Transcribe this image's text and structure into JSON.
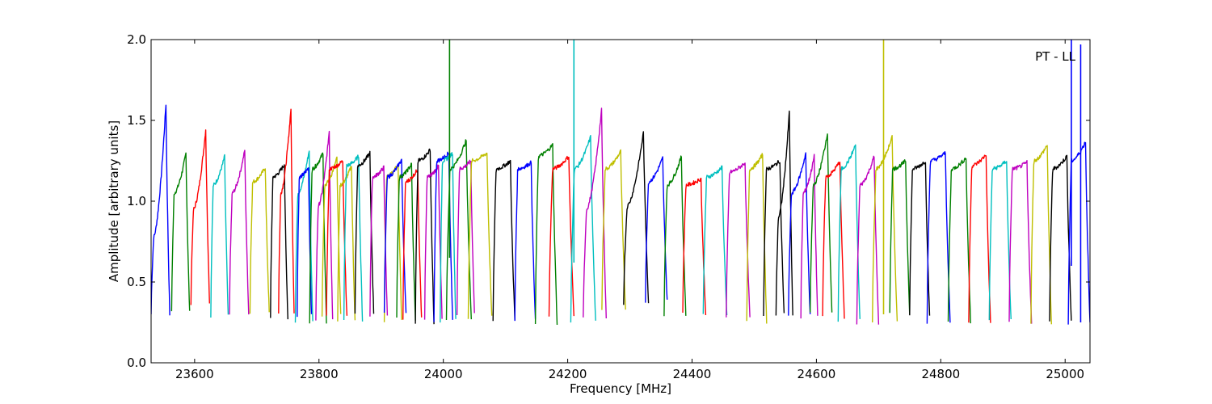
{
  "chart_data": {
    "type": "line",
    "title": "",
    "annotation": "PT - LL",
    "xlabel": "Frequency [MHz]",
    "ylabel": "Amplitude [arbitrary units]",
    "xlim": [
      23530,
      25040
    ],
    "ylim": [
      0.0,
      2.0
    ],
    "xticks": [
      23600,
      23800,
      24000,
      24200,
      24400,
      24600,
      24800,
      25000
    ],
    "yticks": [
      0.0,
      0.5,
      1.0,
      1.5,
      2.0
    ],
    "xtick_labels": [
      "23600",
      "23800",
      "24000",
      "24200",
      "24400",
      "24600",
      "24800",
      "25000"
    ],
    "ytick_labels": [
      "0.0",
      "0.5",
      "1.0",
      "1.5",
      "2.0"
    ],
    "grid": false,
    "legend": "none",
    "palette": {
      "blue": "#0000ff",
      "green": "#008000",
      "red": "#ff0000",
      "cyan": "#00bfbf",
      "magenta": "#bf00bf",
      "olive": "#bfbf00",
      "black": "#000000"
    },
    "series": [
      {
        "color": "#0000ff",
        "start": 23530,
        "end": 23560,
        "peak": 1.61,
        "shoulder": 0.78,
        "min": 0.3
      },
      {
        "color": "#008000",
        "start": 23563,
        "end": 23592,
        "peak": 1.3,
        "shoulder": 1.05,
        "min": 0.31
      },
      {
        "color": "#ff0000",
        "start": 23594,
        "end": 23624,
        "peak": 1.45,
        "shoulder": 0.95,
        "min": 0.37
      },
      {
        "color": "#00bfbf",
        "start": 23626,
        "end": 23654,
        "peak": 1.28,
        "shoulder": 1.1,
        "min": 0.29
      },
      {
        "color": "#bf00bf",
        "start": 23656,
        "end": 23687,
        "peak": 1.32,
        "shoulder": 1.05,
        "min": 0.3
      },
      {
        "color": "#bfbf00",
        "start": 23689,
        "end": 23720,
        "peak": 1.21,
        "shoulder": 1.12,
        "min": 0.31
      },
      {
        "color": "#000000",
        "start": 23722,
        "end": 23750,
        "peak": 1.23,
        "shoulder": 1.15,
        "min": 0.27
      },
      {
        "color": "#ff0000",
        "start": 23735,
        "end": 23760,
        "peak": 1.58,
        "shoulder": 1.05,
        "min": 0.31
      },
      {
        "color": "#00bfbf",
        "start": 23762,
        "end": 23790,
        "peak": 1.32,
        "shoulder": 1.05,
        "min": 0.26
      },
      {
        "color": "#0000ff",
        "start": 23765,
        "end": 23788,
        "peak": 1.21,
        "shoulder": 1.15,
        "min": 0.29
      },
      {
        "color": "#008000",
        "start": 23785,
        "end": 23812,
        "peak": 1.3,
        "shoulder": 1.2,
        "min": 0.25
      },
      {
        "color": "#bf00bf",
        "start": 23795,
        "end": 23822,
        "peak": 1.44,
        "shoulder": 0.97,
        "min": 0.27
      },
      {
        "color": "#bfbf00",
        "start": 23805,
        "end": 23835,
        "peak": 1.27,
        "shoulder": 1.1,
        "min": 0.29
      },
      {
        "color": "#ff0000",
        "start": 23812,
        "end": 23845,
        "peak": 1.25,
        "shoulder": 1.2,
        "min": 0.28
      },
      {
        "color": "#bfbf00",
        "start": 23830,
        "end": 23858,
        "peak": 1.22,
        "shoulder": 1.1,
        "min": 0.26
      },
      {
        "color": "#00bfbf",
        "start": 23840,
        "end": 23870,
        "peak": 1.28,
        "shoulder": 1.22,
        "min": 0.26
      },
      {
        "color": "#000000",
        "start": 23858,
        "end": 23888,
        "peak": 1.3,
        "shoulder": 1.22,
        "min": 0.31
      },
      {
        "color": "#bf00bf",
        "start": 23882,
        "end": 23910,
        "peak": 1.21,
        "shoulder": 1.15,
        "min": 0.29
      },
      {
        "color": "#bfbf00",
        "start": 23905,
        "end": 23933,
        "peak": 1.23,
        "shoulder": 1.15,
        "min": 0.26
      },
      {
        "color": "#0000ff",
        "start": 23905,
        "end": 23940,
        "peak": 1.26,
        "shoulder": 1.15,
        "min": 0.3
      },
      {
        "color": "#008000",
        "start": 23925,
        "end": 23955,
        "peak": 1.23,
        "shoulder": 1.15,
        "min": 0.27
      },
      {
        "color": "#ff0000",
        "start": 23935,
        "end": 23965,
        "peak": 1.2,
        "shoulder": 1.12,
        "min": 0.27
      },
      {
        "color": "#000000",
        "start": 23955,
        "end": 23985,
        "peak": 1.32,
        "shoulder": 1.25,
        "min": 0.24
      },
      {
        "color": "#bf00bf",
        "start": 23970,
        "end": 23998,
        "peak": 1.22,
        "shoulder": 1.15,
        "min": 0.26
      },
      {
        "color": "#0000ff",
        "start": 23985,
        "end": 24015,
        "peak": 1.3,
        "shoulder": 1.25,
        "min": 0.26
      },
      {
        "color": "#00bfbf",
        "start": 23995,
        "end": 24020,
        "peak": 1.3,
        "shoulder": 1.25,
        "min": 0.26
      },
      {
        "color": "#008000",
        "start": 24005,
        "end": 24045,
        "peak": 1.38,
        "shoulder": 1.2,
        "min": 0.26
      },
      {
        "color": "#bf00bf",
        "start": 24022,
        "end": 24050,
        "peak": 1.25,
        "shoulder": 1.2,
        "min": 0.3
      },
      {
        "color": "#bfbf00",
        "start": 24040,
        "end": 24078,
        "peak": 1.3,
        "shoulder": 1.25,
        "min": 0.28
      },
      {
        "color": "#000000",
        "start": 24080,
        "end": 24115,
        "peak": 1.25,
        "shoulder": 1.2,
        "min": 0.26
      },
      {
        "color": "#0000ff",
        "start": 24115,
        "end": 24148,
        "peak": 1.24,
        "shoulder": 1.2,
        "min": 0.26
      },
      {
        "color": "#008000",
        "start": 24148,
        "end": 24183,
        "peak": 1.35,
        "shoulder": 1.28,
        "min": 0.24
      },
      {
        "color": "#ff0000",
        "start": 24170,
        "end": 24210,
        "peak": 1.28,
        "shoulder": 1.2,
        "min": 0.28
      },
      {
        "color": "#00bfbf",
        "start": 24205,
        "end": 24245,
        "peak": 1.4,
        "shoulder": 1.2,
        "min": 0.25
      },
      {
        "color": "#bf00bf",
        "start": 24225,
        "end": 24262,
        "peak": 1.57,
        "shoulder": 0.95,
        "min": 0.27
      },
      {
        "color": "#bfbf00",
        "start": 24255,
        "end": 24293,
        "peak": 1.31,
        "shoulder": 1.2,
        "min": 0.33
      },
      {
        "color": "#000000",
        "start": 24290,
        "end": 24330,
        "peak": 1.43,
        "shoulder": 0.97,
        "min": 0.37
      },
      {
        "color": "#0000ff",
        "start": 24325,
        "end": 24360,
        "peak": 1.27,
        "shoulder": 1.12,
        "min": 0.38
      },
      {
        "color": "#008000",
        "start": 24355,
        "end": 24390,
        "peak": 1.28,
        "shoulder": 1.1,
        "min": 0.3
      },
      {
        "color": "#ff0000",
        "start": 24385,
        "end": 24422,
        "peak": 1.14,
        "shoulder": 1.1,
        "min": 0.3
      },
      {
        "color": "#00bfbf",
        "start": 24418,
        "end": 24456,
        "peak": 1.21,
        "shoulder": 1.15,
        "min": 0.29
      },
      {
        "color": "#bf00bf",
        "start": 24455,
        "end": 24493,
        "peak": 1.24,
        "shoulder": 1.18,
        "min": 0.28
      },
      {
        "color": "#bfbf00",
        "start": 24488,
        "end": 24520,
        "peak": 1.29,
        "shoulder": 1.2,
        "min": 0.25
      },
      {
        "color": "#000000",
        "start": 24515,
        "end": 24548,
        "peak": 1.25,
        "shoulder": 1.2,
        "min": 0.3
      },
      {
        "color": "#000000",
        "start": 24535,
        "end": 24562,
        "peak": 1.56,
        "shoulder": 0.9,
        "min": 0.29
      },
      {
        "color": "#0000ff",
        "start": 24555,
        "end": 24590,
        "peak": 1.3,
        "shoulder": 1.05,
        "min": 0.29
      },
      {
        "color": "#bf00bf",
        "start": 24575,
        "end": 24602,
        "peak": 1.28,
        "shoulder": 1.05,
        "min": 0.28
      },
      {
        "color": "#008000",
        "start": 24590,
        "end": 24625,
        "peak": 1.43,
        "shoulder": 1.1,
        "min": 0.3
      },
      {
        "color": "#ff0000",
        "start": 24610,
        "end": 24645,
        "peak": 1.25,
        "shoulder": 1.15,
        "min": 0.28
      },
      {
        "color": "#00bfbf",
        "start": 24635,
        "end": 24670,
        "peak": 1.35,
        "shoulder": 1.2,
        "min": 0.26
      },
      {
        "color": "#bf00bf",
        "start": 24665,
        "end": 24700,
        "peak": 1.28,
        "shoulder": 1.1,
        "min": 0.24
      },
      {
        "color": "#bfbf00",
        "start": 24690,
        "end": 24730,
        "peak": 1.4,
        "shoulder": 1.2,
        "min": 0.25
      },
      {
        "color": "#008000",
        "start": 24718,
        "end": 24750,
        "peak": 1.25,
        "shoulder": 1.2,
        "min": 0.3
      },
      {
        "color": "#000000",
        "start": 24750,
        "end": 24782,
        "peak": 1.25,
        "shoulder": 1.2,
        "min": 0.29
      },
      {
        "color": "#0000ff",
        "start": 24778,
        "end": 24815,
        "peak": 1.3,
        "shoulder": 1.25,
        "min": 0.25
      },
      {
        "color": "#008000",
        "start": 24812,
        "end": 24848,
        "peak": 1.27,
        "shoulder": 1.2,
        "min": 0.25
      },
      {
        "color": "#ff0000",
        "start": 24845,
        "end": 24880,
        "peak": 1.29,
        "shoulder": 1.22,
        "min": 0.25
      },
      {
        "color": "#00bfbf",
        "start": 24878,
        "end": 24913,
        "peak": 1.25,
        "shoulder": 1.2,
        "min": 0.26
      },
      {
        "color": "#bf00bf",
        "start": 24910,
        "end": 24946,
        "peak": 1.24,
        "shoulder": 1.2,
        "min": 0.25
      },
      {
        "color": "#bfbf00",
        "start": 24945,
        "end": 24978,
        "peak": 1.35,
        "shoulder": 1.25,
        "min": 0.24
      },
      {
        "color": "#000000",
        "start": 24975,
        "end": 25010,
        "peak": 1.28,
        "shoulder": 1.2,
        "min": 0.25
      },
      {
        "color": "#0000ff",
        "start": 25005,
        "end": 25040,
        "peak": 1.37,
        "shoulder": 1.25,
        "min": 0.24
      }
    ],
    "spikes": [
      {
        "color": "#008000",
        "x": 24010,
        "top": 2.0,
        "bottom": 0.65
      },
      {
        "color": "#00bfbf",
        "x": 24210,
        "top": 2.0,
        "bottom": 0.62
      },
      {
        "color": "#bfbf00",
        "x": 24708,
        "top": 2.0,
        "bottom": 0.3
      },
      {
        "color": "#0000ff",
        "x": 25010,
        "top": 2.0,
        "bottom": 0.6
      },
      {
        "color": "#0000ff",
        "x": 25025,
        "top": 1.97,
        "bottom": 0.25
      }
    ]
  }
}
